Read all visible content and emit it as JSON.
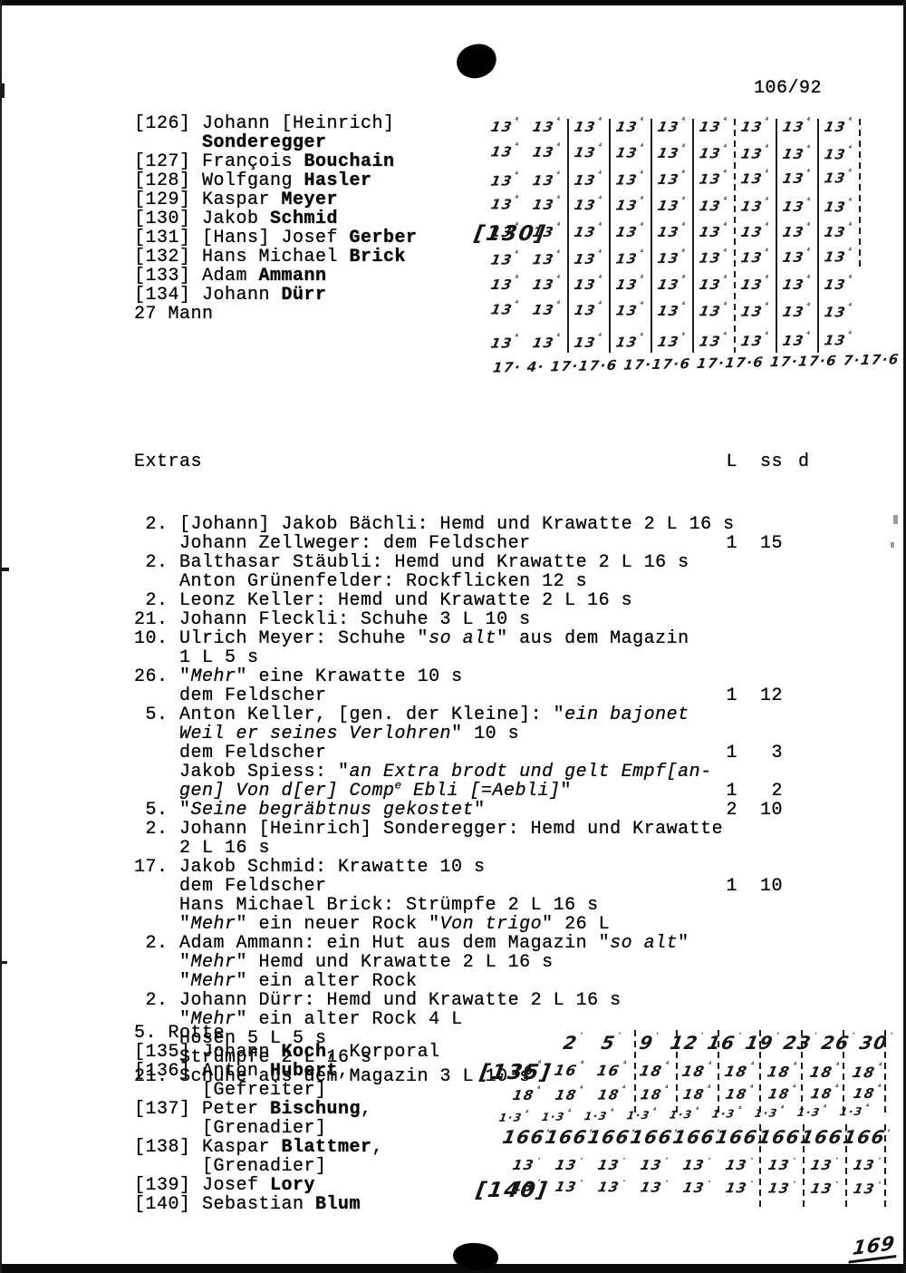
{
  "page": {
    "number": "106/92",
    "bottom_right_mark": "169"
  },
  "names_list": {
    "lines": [
      "[126] Johann [Heinrich]",
      "      **Sonderegger**",
      "[127] François **Bouchain**",
      "[128] Wolfgang **Hasler**",
      "[129] Kaspar **Meyer**",
      "[130] Jakob **Schmid**",
      "[131] [Hans] Josef **Gerber**",
      "[132] Hans Michael **Brick**",
      "[133] Adam **Ammann**",
      "[134] Johann **Dürr**",
      "27 Mann"
    ]
  },
  "rotte": {
    "lines": [
      "5. Rotte",
      "[135] Johann **Koch**, Korporal",
      "[136] Anton **Hubert**,",
      "      [Gefreiter]",
      "[137] Peter **Bischung**,",
      "      [Grenadier]",
      "[138] Kaspar **Blattmer**,",
      "      [Grenadier]",
      "[139] Josef **Lory**",
      "[140] Sebastian **Blum**"
    ]
  },
  "annotations": {
    "a130": "[130]",
    "a135": "[135]",
    "a140": "[140]"
  },
  "extras": {
    "title": "Extras",
    "col_headers": {
      "L": "L",
      "ss": "ss",
      "d": "d"
    },
    "lines": [
      {
        "t": " 2. [Johann] Jakob Bächli: Hemd und Krawatte 2 L 16 s"
      },
      {
        "t": "    Johann Zellweger: dem Feldscher",
        "L": "1",
        "ss": "15"
      },
      {
        "t": " 2. Balthasar Stäubli: Hemd und Krawatte 2 L 16 s"
      },
      {
        "t": "    Anton Grünenfelder: Rockflicken 12 s"
      },
      {
        "t": " 2. Leonz Keller: Hemd und Krawatte 2 L 16 s"
      },
      {
        "t": "21. Johann Fleckli: Schuhe 3 L 10 s"
      },
      {
        "t": "10. Ulrich Meyer: Schuhe \"*so alt*\" aus dem Magazin"
      },
      {
        "t": "    1 L 5 s"
      },
      {
        "t": "26. \"*Mehr*\" eine Krawatte 10 s"
      },
      {
        "t": "    dem Feldscher",
        "L": "1",
        "ss": "12"
      },
      {
        "t": " 5. Anton Keller, [gen. der Kleine]: \"*ein bajonet*"
      },
      {
        "t": "    *Weil er seines Verlohren*\" 10 s"
      },
      {
        "t": "    dem Feldscher",
        "L": "1",
        "ss": "3"
      },
      {
        "t": "    Jakob Spiess: \"*an Extra brodt und gelt Empf[an-*"
      },
      {
        "t": "    *gen] Von d[er] Comp^e Ebli [=Aebli]*\"",
        "L": "1",
        "ss": "2"
      },
      {
        "t": " 5. \"*Seine begräbtnus gekostet*\"",
        "L": "2",
        "ss": "10"
      },
      {
        "t": " 2. Johann [Heinrich] Sonderegger: Hemd und Krawatte"
      },
      {
        "t": "    2 L 16 s"
      },
      {
        "t": "17. Jakob Schmid: Krawatte 10 s"
      },
      {
        "t": "    dem Feldscher",
        "L": "1",
        "ss": "10"
      },
      {
        "t": "    Hans Michael Brick: Strümpfe 2 L 16 s"
      },
      {
        "t": "    \"*Mehr*\" ein neuer Rock \"*Von trigo*\" 26 L"
      },
      {
        "t": " 2. Adam Ammann: ein Hut aus dem Magazin \"*so alt*\""
      },
      {
        "t": "    \"*Mehr*\" Hemd und Krawatte 2 L 16 s"
      },
      {
        "t": "    \"*Mehr*\" ein alter Rock"
      },
      {
        "t": " 2. Johann Dürr: Hemd und Krawatte 2 L 16 s"
      },
      {
        "t": "    \"*Mehr*\" ein alter Rock 4 L"
      },
      {
        "t": "    Hosen 5 L 5 s"
      },
      {
        "t": "    Strümpfe 2 L 16 s"
      },
      {
        "t": "21. Schuhe aus dem Magazin 3 L 10 s"
      }
    ]
  },
  "hand_top": {
    "tick": "⁴",
    "rows": [
      [
        "13",
        "13",
        "13",
        "13",
        "13",
        "13",
        "13",
        "13",
        "13"
      ],
      [
        "13",
        "13",
        "13",
        "13",
        "13",
        "13",
        "13",
        "13",
        "13"
      ],
      [
        "13",
        "13",
        "13",
        "13",
        "13",
        "13",
        "13",
        "13",
        "13"
      ],
      [
        "13",
        "13",
        "13",
        "13",
        "13",
        "13",
        "13",
        "13",
        "13"
      ],
      [
        "13",
        "13",
        "13",
        "13",
        "13",
        "13",
        "13",
        "13",
        "13"
      ],
      [
        "13",
        "13",
        "13",
        "13",
        "13",
        "13",
        "13",
        "13",
        "13"
      ],
      [
        "13",
        "13",
        "13",
        "13",
        "13",
        "13",
        "13",
        "13",
        "13"
      ],
      [
        "13",
        "13",
        "13",
        "13",
        "13",
        "13",
        "13",
        "13",
        "13"
      ],
      [
        "13",
        "13",
        "13",
        "13",
        "13",
        "13",
        "13",
        "13",
        "13"
      ]
    ],
    "summary": "17· 4· 17·17·6 17·17·6 17·17·6 17·17·6 7·17·6 17·17·6 17·17·6 17·17·6"
  },
  "hand_bottom": {
    "rows": [
      {
        "cls": "dates",
        "tick": "·",
        "cells": [
          "2",
          "5",
          "9",
          "12",
          "16",
          "19",
          "23",
          "26",
          "30"
        ]
      },
      {
        "cls": "r18a",
        "tick": "⁴",
        "cells": [
          "16",
          "16",
          "16",
          "18",
          "18",
          "18",
          "18",
          "18",
          "18"
        ]
      },
      {
        "cls": "r18b",
        "tick": "⁴",
        "cells": [
          "18",
          "18",
          "18",
          "18",
          "18",
          "18",
          "18",
          "18",
          "18"
        ]
      },
      {
        "cls": "r13s",
        "tick": "⁴",
        "cells": [
          "1·3",
          "1·3",
          "1·3",
          "1·3",
          "1·3",
          "1·3",
          "1·3",
          "1·3",
          "1·3"
        ]
      },
      {
        "cls": "r166",
        "tick": ",",
        "cells": [
          "166",
          "166",
          "166",
          "166",
          "166",
          "166",
          "166",
          "166",
          "166"
        ]
      },
      {
        "cls": "r13a",
        "tick": "·",
        "cells": [
          "13",
          "13",
          "13",
          "13",
          "13",
          "13",
          "13",
          "13",
          "13"
        ]
      },
      {
        "cls": "r13b",
        "tick": "·",
        "cells": [
          "13",
          "13",
          "13",
          "13",
          "13",
          "13",
          "13",
          "13",
          "13"
        ]
      }
    ]
  }
}
